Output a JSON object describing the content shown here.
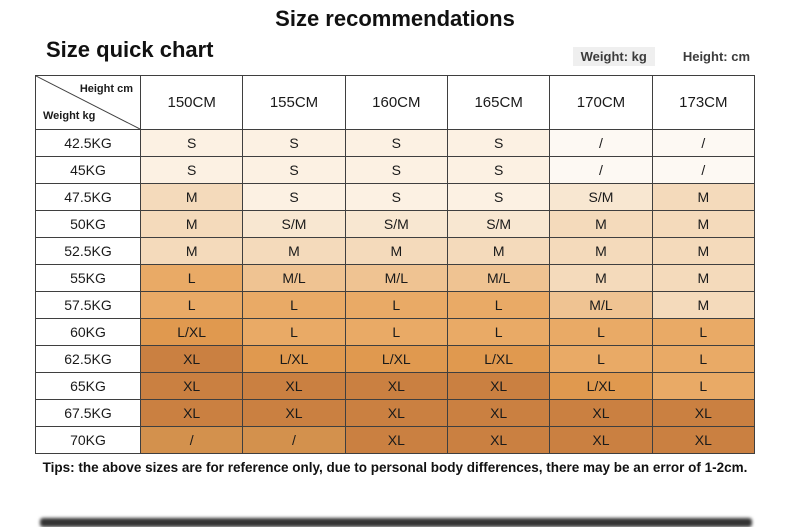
{
  "page": {
    "title": "Size recommendations",
    "subtitle": "Size quick chart",
    "weight_unit_label": "Weight: kg",
    "height_unit_label": "Height: cm",
    "tips": "Tips: the above sizes are for reference only, due to personal body differences, there may be an error of 1-2cm."
  },
  "chart_data": {
    "type": "table",
    "title": "Size recommendations",
    "subtitle": "Size quick chart",
    "col_axis_label": "Height cm",
    "row_axis_label": "Weight kg",
    "columns": [
      "150CM",
      "155CM",
      "160CM",
      "165CM",
      "170CM",
      "173CM"
    ],
    "rows": [
      "42.5KG",
      "45KG",
      "47.5KG",
      "50KG",
      "52.5KG",
      "55KG",
      "57.5KG",
      "60KG",
      "62.5KG",
      "65KG",
      "67.5KG",
      "70KG"
    ],
    "cells": [
      [
        "S",
        "S",
        "S",
        "S",
        "/",
        "/"
      ],
      [
        "S",
        "S",
        "S",
        "S",
        "/",
        "/"
      ],
      [
        "M",
        "S",
        "S",
        "S",
        "S/M",
        "M"
      ],
      [
        "M",
        "S/M",
        "S/M",
        "S/M",
        "M",
        "M"
      ],
      [
        "M",
        "M",
        "M",
        "M",
        "M",
        "M"
      ],
      [
        "L",
        "M/L",
        "M/L",
        "M/L",
        "M",
        "M"
      ],
      [
        "L",
        "L",
        "L",
        "L",
        "M/L",
        "M"
      ],
      [
        "L/XL",
        "L",
        "L",
        "L",
        "L",
        "L"
      ],
      [
        "XL",
        "L/XL",
        "L/XL",
        "L/XL",
        "L",
        "L"
      ],
      [
        "XL",
        "XL",
        "XL",
        "XL",
        "L/XL",
        "L"
      ],
      [
        "XL",
        "XL",
        "XL",
        "XL",
        "XL",
        "XL"
      ],
      [
        "/",
        "/",
        "XL",
        "XL",
        "XL",
        "XL"
      ]
    ],
    "value_colors": {
      "S": "#fcf1e3",
      "S/M": "#f8e7d1",
      "M": "#f4dabb",
      "M/L": "#efc392",
      "L": "#e9aa66",
      "L/XL": "#e0994f",
      "XL": "#ca8041",
      "slash_light": "#fdf9f3",
      "slash_dark": "#d3914d"
    }
  }
}
